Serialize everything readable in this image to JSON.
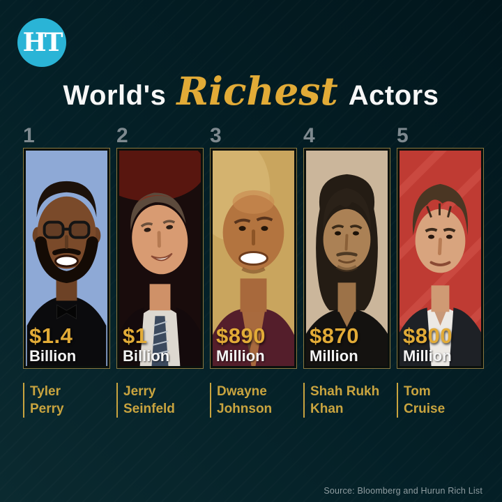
{
  "page": {
    "logo_text": "HT",
    "title": {
      "prefix": "World's",
      "highlight": "Richest",
      "suffix": "Actors"
    },
    "source": "Source: Bloomberg and Hurun Rich List"
  },
  "colors": {
    "background_dark_teal": "#042027",
    "accent_gold": "#e2ab37",
    "name_gold": "#c9a43f",
    "rank_gray": "#7e898f",
    "logo_cyan": "#2ab4d6",
    "card_border": "#8a7940"
  },
  "actors": [
    {
      "rank": "1",
      "name": "Tyler Perry",
      "name_lines": [
        "Tyler",
        "Perry"
      ],
      "amount": "$1.4",
      "unit": "Billion",
      "portrait": {
        "variant": "tyler-perry",
        "bg": "#8ea9d6",
        "description": "smiling man with glasses and beard in black tuxedo on light blue backdrop"
      }
    },
    {
      "rank": "2",
      "name": "Jerry Seinfeld",
      "name_lines": [
        "Jerry",
        "Seinfeld"
      ],
      "amount": "$1",
      "unit": "Billion",
      "portrait": {
        "variant": "jerry-seinfeld",
        "bg": "#190c0c",
        "description": "man looking up smiling, white shirt and striped tie, dark stage backdrop with red light"
      }
    },
    {
      "rank": "3",
      "name": "Dwayne Johnson",
      "name_lines": [
        "Dwayne",
        "Johnson"
      ],
      "amount": "$890",
      "unit": "Million",
      "portrait": {
        "variant": "dwayne-johnson",
        "bg": "#c9a55e",
        "description": "bald smiling man in maroon shirt with chest tattoo on gold backdrop"
      }
    },
    {
      "rank": "4",
      "name": "Shah Rukh Khan",
      "name_lines": [
        "Shah Rukh",
        "Khan"
      ],
      "amount": "$870",
      "unit": "Million",
      "portrait": {
        "variant": "shah-rukh-khan",
        "bg": "#cbb69b",
        "description": "man with long dark hair in black shirt on beige backdrop"
      }
    },
    {
      "rank": "5",
      "name": "Tom Cruise",
      "name_lines": [
        "Tom",
        "Cruise"
      ],
      "amount": "$800",
      "unit": "Million",
      "portrait": {
        "variant": "tom-cruise",
        "bg": "#bf3b33",
        "description": "man with tousled brown hair, white open shirt and dark suit on red striped backdrop"
      }
    }
  ]
}
